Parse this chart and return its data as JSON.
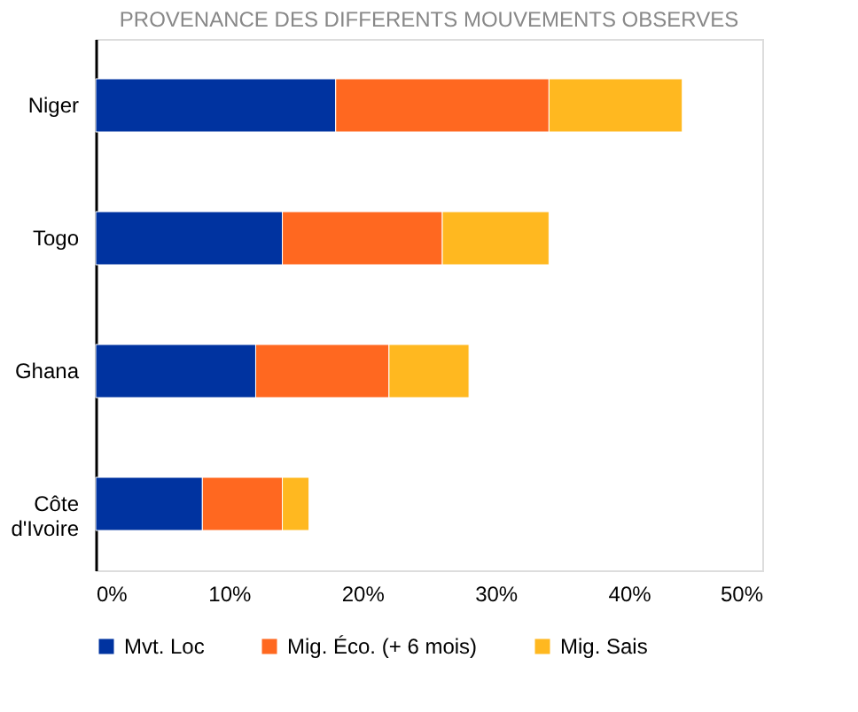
{
  "chart_data": {
    "type": "bar",
    "orientation": "horizontal",
    "stacked": true,
    "title": "PROVENANCE DES DIFFERENTS MOUVEMENTS OBSERVES",
    "categories": [
      "Niger",
      "Togo",
      "Ghana",
      "Côte d'Ivoire"
    ],
    "series": [
      {
        "name": "Mvt. Loc",
        "color": "#0033a0",
        "values": [
          18,
          14,
          12,
          8
        ]
      },
      {
        "name": "Mig. Éco. (+ 6 mois)",
        "color": "#ff6820",
        "values": [
          16,
          12,
          10,
          6
        ]
      },
      {
        "name": "Mig. Sais",
        "color": "#ffb820",
        "values": [
          10,
          8,
          6,
          2
        ]
      }
    ],
    "xlim": [
      0,
      50
    ],
    "xticks": [
      {
        "value": 0,
        "label": "0%"
      },
      {
        "value": 10,
        "label": "10%"
      },
      {
        "value": 20,
        "label": "20%"
      },
      {
        "value": 30,
        "label": "30%"
      },
      {
        "value": 40,
        "label": "40%"
      },
      {
        "value": 50,
        "label": "50%"
      }
    ],
    "grid": false,
    "legend": "bottom"
  }
}
